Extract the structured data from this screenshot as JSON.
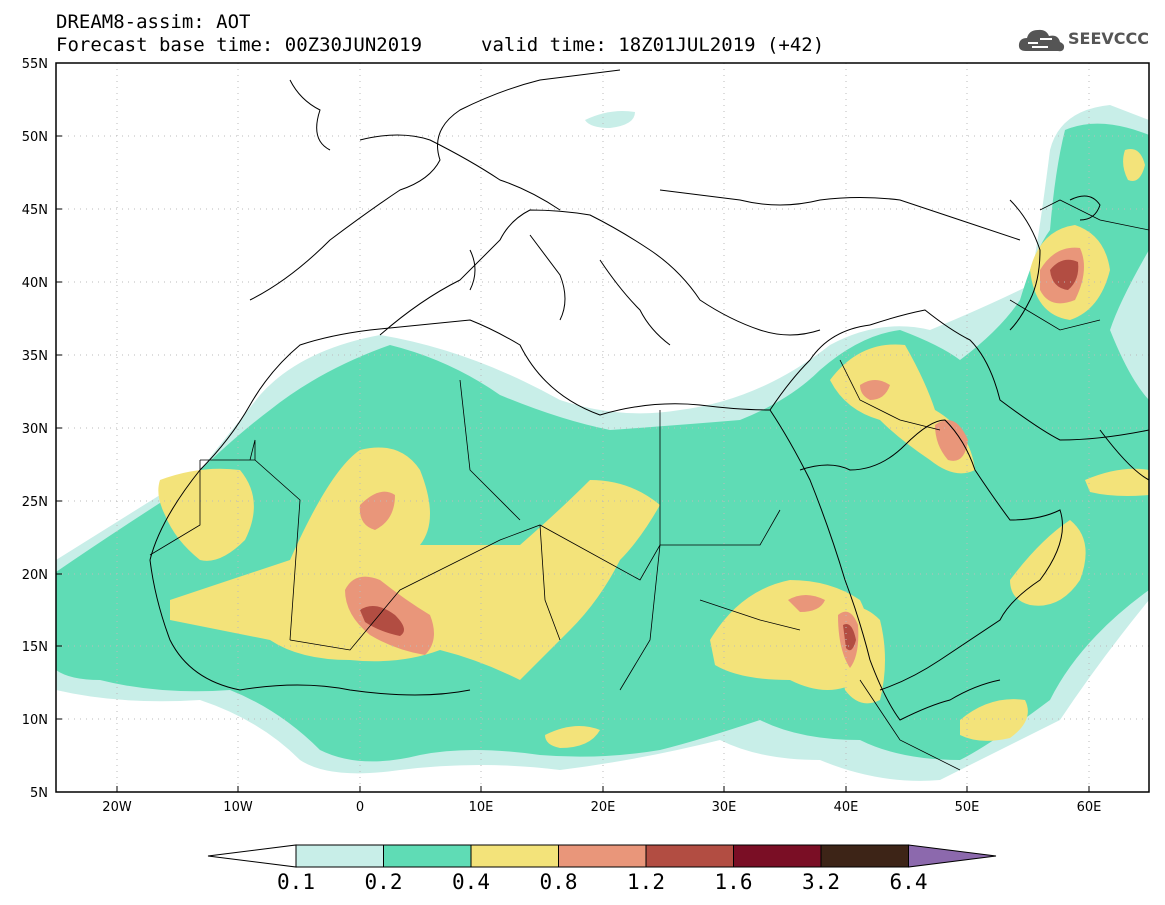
{
  "header": {
    "line1": "DREAM8-assim: AOT",
    "line2": "Forecast base time: 00Z30JUN2019",
    "valid": "valid time: 18Z01JUL2019 (+42)",
    "logo": "SEEVCCC"
  },
  "axes": {
    "lat_labels": [
      "55N",
      "50N",
      "45N",
      "40N",
      "35N",
      "30N",
      "25N",
      "20N",
      "15N",
      "10N",
      "5N"
    ],
    "lon_labels": [
      "20W",
      "10W",
      "0",
      "10E",
      "20E",
      "30E",
      "40E",
      "50E",
      "60E"
    ]
  },
  "legend": {
    "colors": [
      "#ffffff",
      "#c8eee8",
      "#5fdcb5",
      "#f3e37a",
      "#e9967a",
      "#b24d42",
      "#7a0e25",
      "#3d2417",
      "#8c69ad"
    ],
    "labels": [
      "0.1",
      "0.2",
      "0.4",
      "0.8",
      "1.2",
      "1.6",
      "3.2",
      "6.4"
    ]
  }
}
